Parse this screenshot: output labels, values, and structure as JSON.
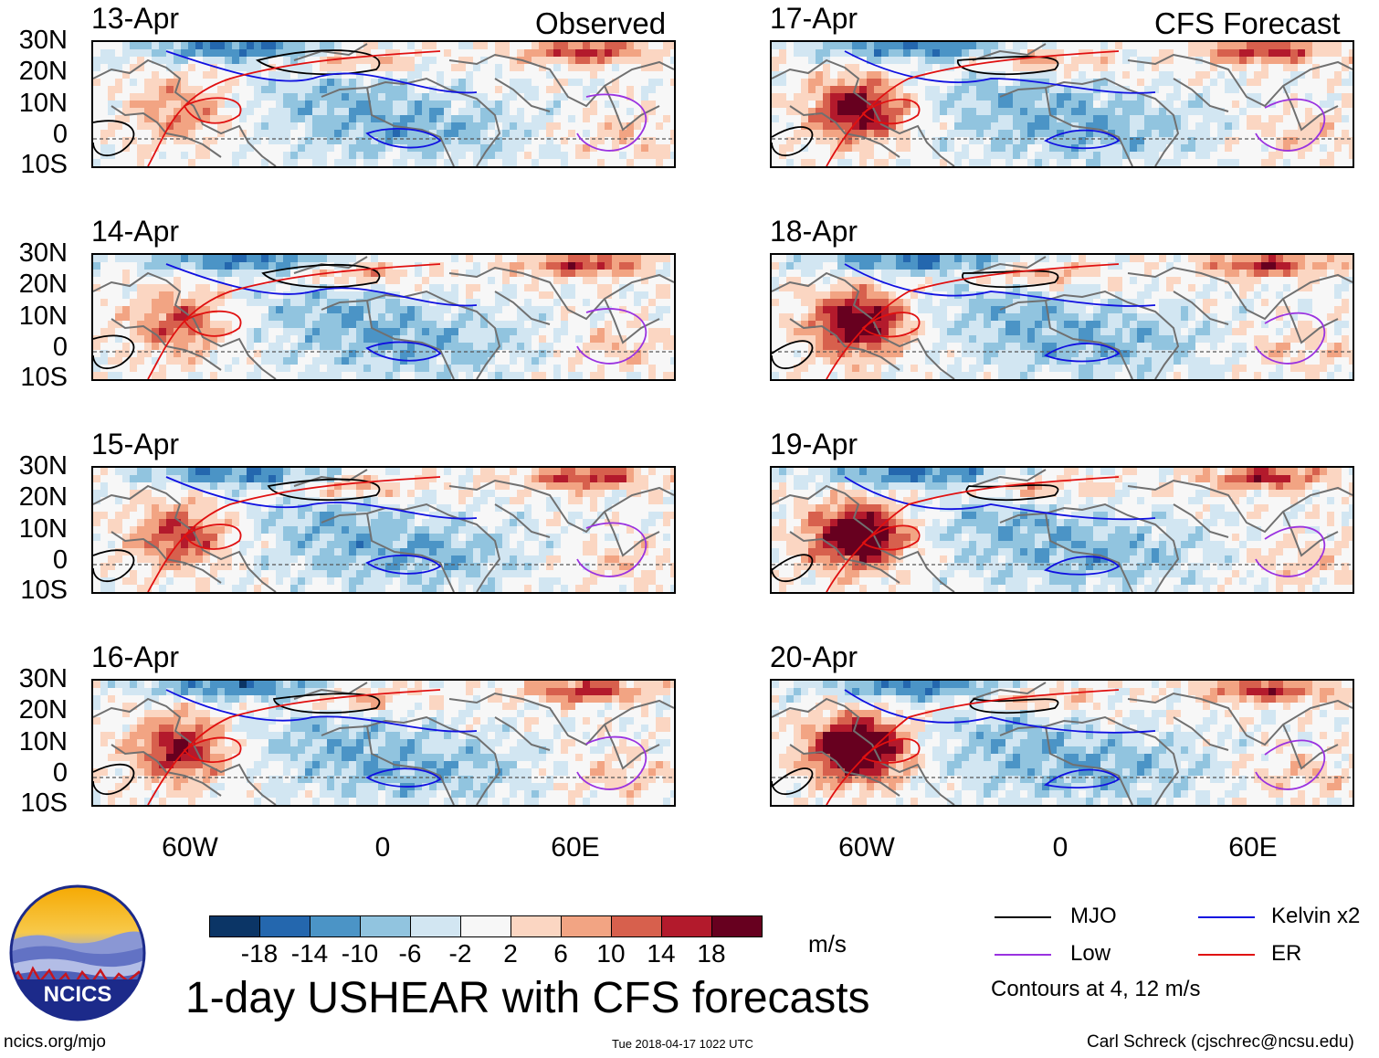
{
  "headers": {
    "left": "Observed",
    "right": "CFS Forecast"
  },
  "lat_labels": [
    "30N",
    "20N",
    "10N",
    "0",
    "10S"
  ],
  "lon_labels": [
    "60W",
    "0",
    "60E"
  ],
  "panels_left": [
    {
      "date": "13-Apr"
    },
    {
      "date": "14-Apr"
    },
    {
      "date": "15-Apr"
    },
    {
      "date": "16-Apr"
    }
  ],
  "panels_right": [
    {
      "date": "17-Apr"
    },
    {
      "date": "18-Apr"
    },
    {
      "date": "19-Apr"
    },
    {
      "date": "20-Apr"
    }
  ],
  "colorbar": {
    "colors": [
      "#0b3566",
      "#2467ae",
      "#4b94c6",
      "#91c4df",
      "#d2e6f2",
      "#f7f7f7",
      "#fbd6c2",
      "#f2a483",
      "#d7604d",
      "#b31a2c",
      "#67001f"
    ],
    "tick_labels": [
      "-18",
      "-14",
      "-10",
      "-6",
      "-2",
      "2",
      "6",
      "10",
      "14",
      "18"
    ],
    "unit": "m/s"
  },
  "legend": {
    "items": [
      {
        "label": "MJO",
        "color": "#000000"
      },
      {
        "label": "Kelvin x2",
        "color": "#1010e0"
      },
      {
        "label": "Low",
        "color": "#9a32e0"
      },
      {
        "label": "ER",
        "color": "#e01010"
      }
    ],
    "note": "Contours at 4, 12 m/s"
  },
  "logo": {
    "text": "NCICS"
  },
  "title": "1-day USHEAR with CFS forecasts",
  "footer": {
    "url": "ncics.org/mjo",
    "timestamp": "Tue 2018-04-17 1022 UTC",
    "author": "Carl Schreck (cjschrec@ncsu.edu)"
  }
}
